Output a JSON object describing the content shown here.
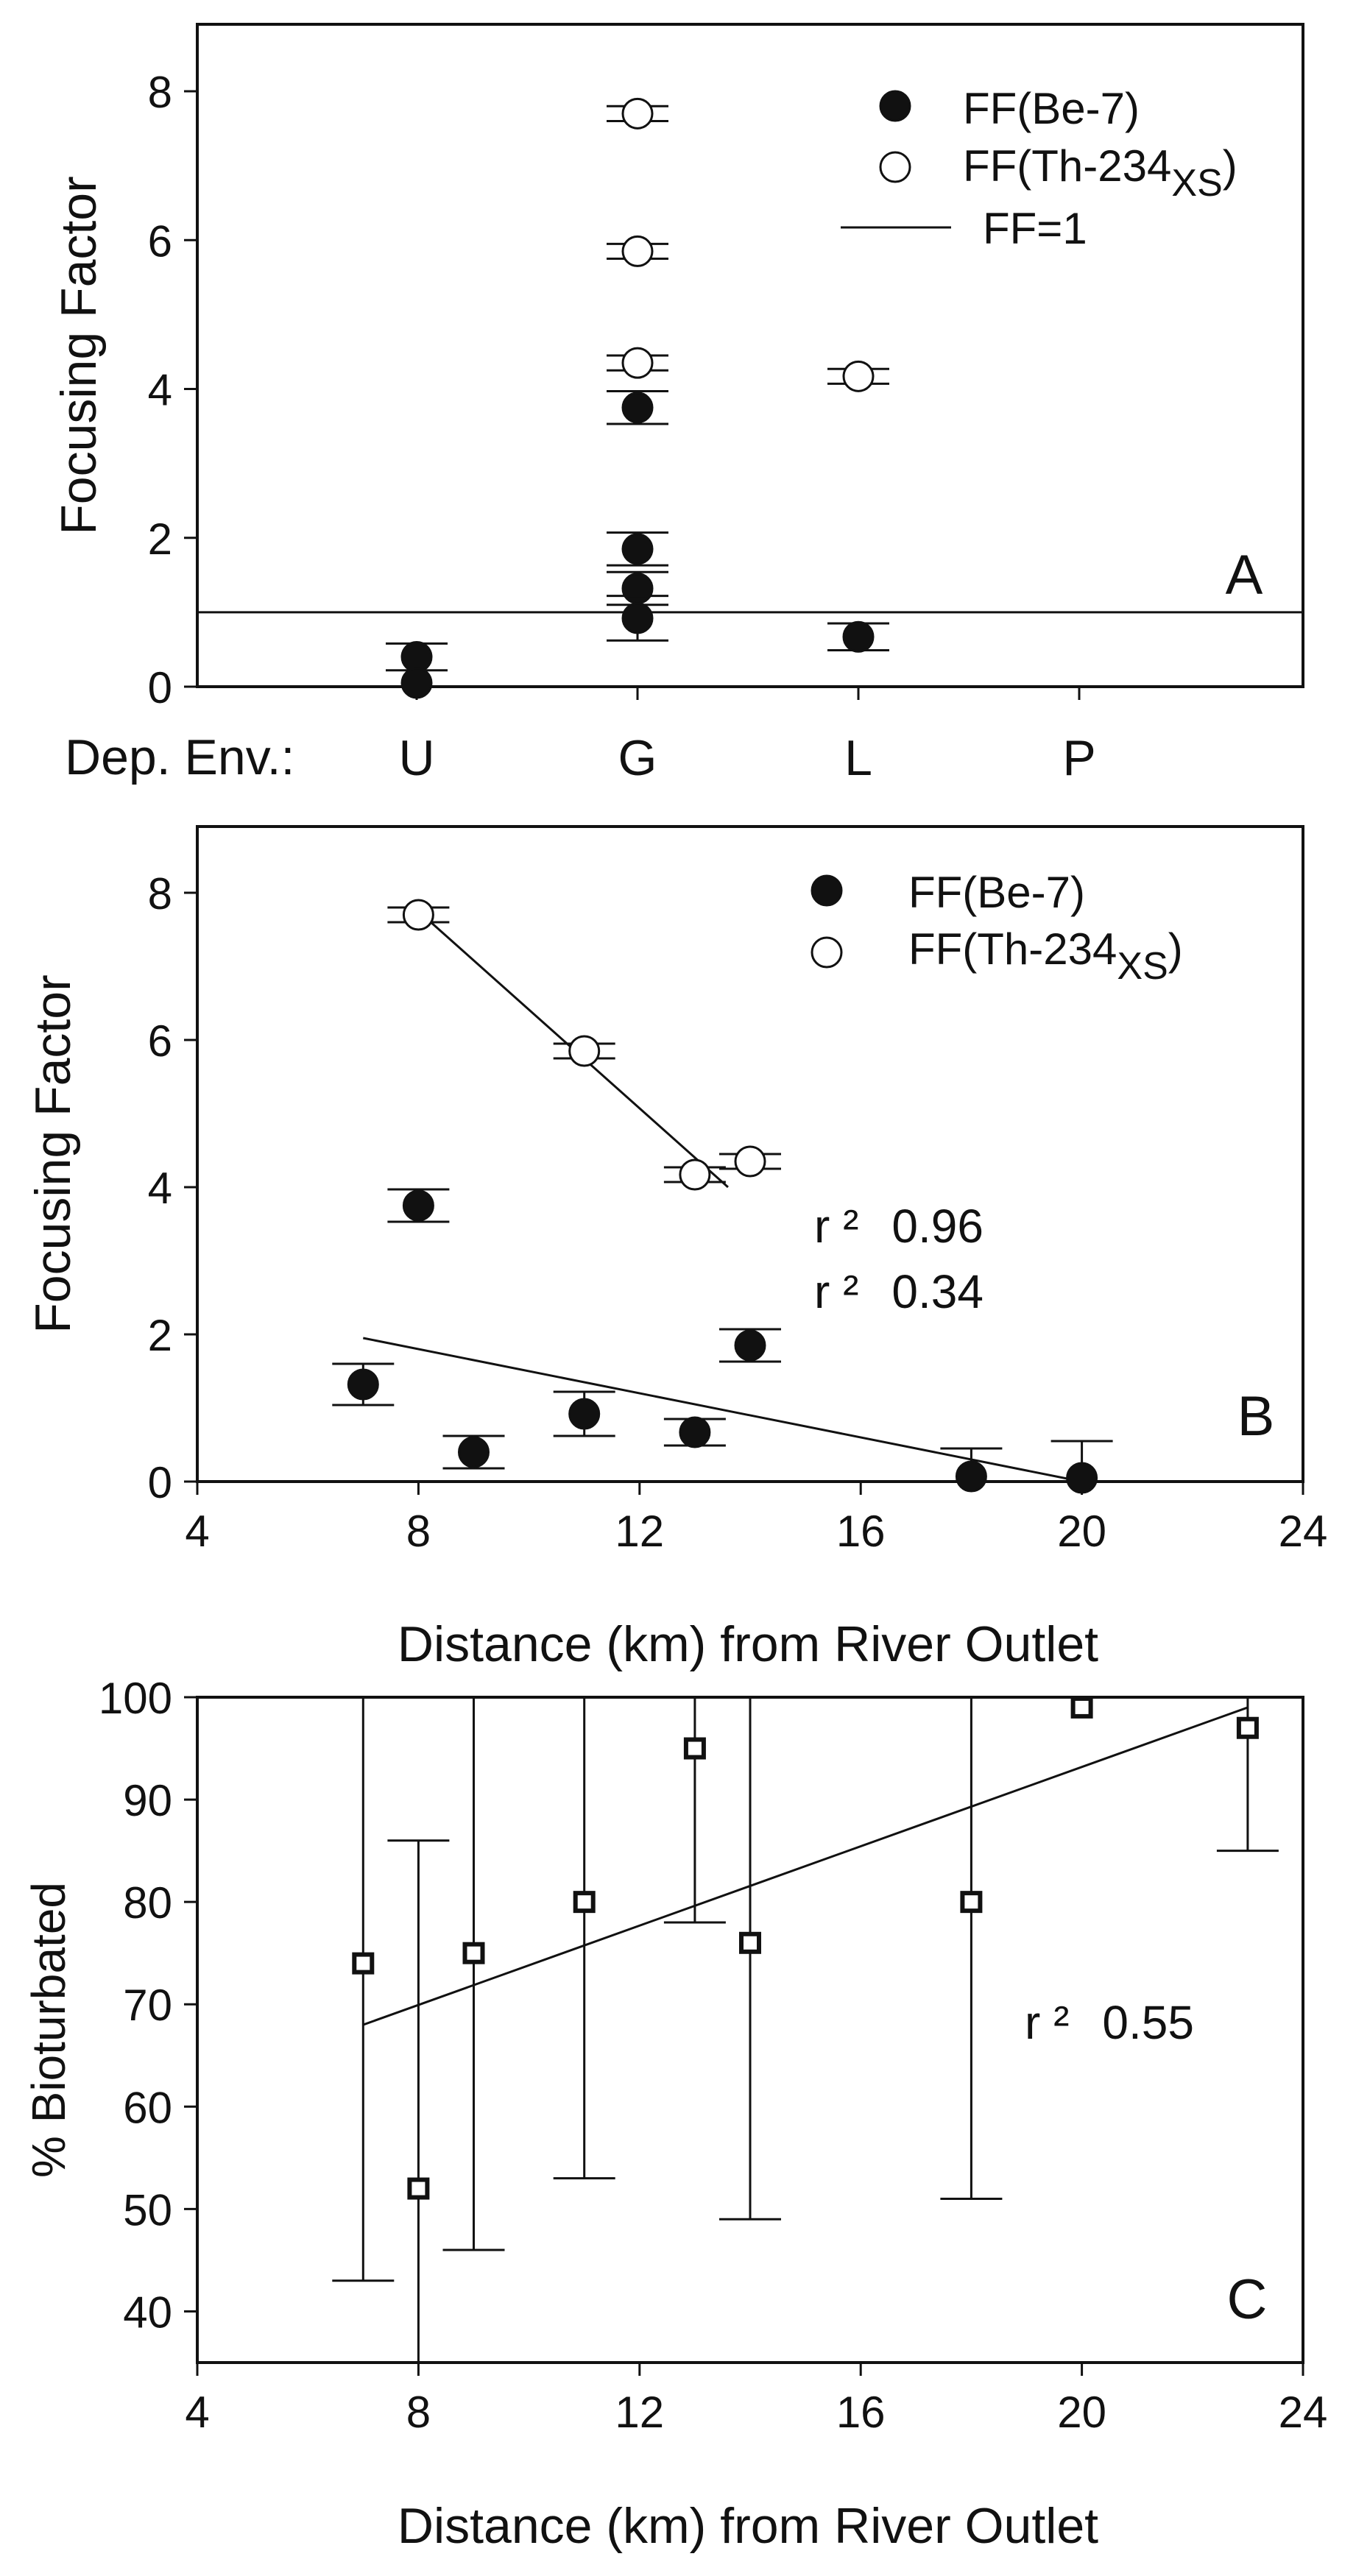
{
  "colors": {
    "ink": "#111111",
    "background": "#ffffff",
    "open_marker_fill": "#ffffff"
  },
  "chart_data": [
    {
      "panel": "A",
      "type": "scatter",
      "ylabel": "Focusing Factor",
      "ylim": [
        0,
        8.9
      ],
      "yticks": [
        0,
        2,
        4,
        6,
        8
      ],
      "x_prefix": "Dep. Env.:",
      "categories": [
        "U",
        "G",
        "L",
        "P"
      ],
      "legend": {
        "position": "top-right",
        "be7": "FF(Be-7)",
        "th_main": "FF(Th-234",
        "th_sub": "XS",
        "th_close": ")",
        "line": "FF=1"
      },
      "reference_line": {
        "y": 1
      },
      "series": [
        {
          "name": "FF(Be-7)",
          "marker": "filled-circle",
          "points": [
            {
              "cat": "U",
              "y": 0.4,
              "err": 0.18
            },
            {
              "cat": "U",
              "y": 0.05,
              "err": 0.0
            },
            {
              "cat": "G",
              "y": 3.75,
              "err": 0.22
            },
            {
              "cat": "G",
              "y": 1.85,
              "err": 0.22
            },
            {
              "cat": "G",
              "y": 1.32,
              "err": 0.22
            },
            {
              "cat": "G",
              "y": 0.92,
              "err": 0.3
            },
            {
              "cat": "L",
              "y": 0.67,
              "err": 0.18
            }
          ]
        },
        {
          "name": "FF(Th-234XS)",
          "marker": "open-circle",
          "points": [
            {
              "cat": "G",
              "y": 7.7,
              "err": 0.1
            },
            {
              "cat": "G",
              "y": 5.85,
              "err": 0.1
            },
            {
              "cat": "G",
              "y": 4.35,
              "err": 0.1
            },
            {
              "cat": "L",
              "y": 4.17,
              "err": 0.1
            }
          ]
        }
      ],
      "panel_label": "A"
    },
    {
      "panel": "B",
      "type": "scatter",
      "xlabel": "Distance (km) from River Outlet",
      "ylabel": "Focusing Factor",
      "xlim": [
        4,
        24
      ],
      "ylim": [
        0,
        8.9
      ],
      "xticks": [
        4,
        8,
        12,
        16,
        20,
        24
      ],
      "yticks": [
        0,
        2,
        4,
        6,
        8
      ],
      "legend": {
        "position": "top-right",
        "be7": "FF(Be-7)",
        "th_main": "FF(Th-234",
        "th_sub": "XS",
        "th_close": ")"
      },
      "annotations": {
        "r2_label": "r ²",
        "r2_th": "0.96",
        "r2_be": "0.34"
      },
      "series": [
        {
          "name": "FF(Be-7)",
          "marker": "filled-circle",
          "points": [
            {
              "x": 7,
              "y": 1.32,
              "err": 0.28
            },
            {
              "x": 8,
              "y": 3.75,
              "err": 0.22
            },
            {
              "x": 9,
              "y": 0.4,
              "err": 0.22
            },
            {
              "x": 11,
              "y": 0.92,
              "err": 0.3
            },
            {
              "x": 13,
              "y": 0.67,
              "err": 0.18
            },
            {
              "x": 14,
              "y": 1.85,
              "err": 0.22
            },
            {
              "x": 18,
              "y": 0.07,
              "err": 0.38
            },
            {
              "x": 20,
              "y": 0.05,
              "err": 0.5
            }
          ]
        },
        {
          "name": "FF(Th-234XS)",
          "marker": "open-circle",
          "points": [
            {
              "x": 8,
              "y": 7.7,
              "err": 0.1
            },
            {
              "x": 11,
              "y": 5.85,
              "err": 0.1
            },
            {
              "x": 13,
              "y": 4.17,
              "err": 0.1
            },
            {
              "x": 14,
              "y": 4.35,
              "err": 0.1
            }
          ]
        }
      ],
      "fit_lines": [
        {
          "name": "Th-234XS fit",
          "x": [
            8,
            13.6
          ],
          "y": [
            7.75,
            4.0
          ]
        },
        {
          "name": "Be-7 fit",
          "x": [
            7,
            20
          ],
          "y": [
            1.95,
            0.0
          ]
        }
      ],
      "panel_label": "B"
    },
    {
      "panel": "C",
      "type": "scatter",
      "xlabel": "Distance (km) from River Outlet",
      "ylabel": "% Bioturbated",
      "xlim": [
        4,
        24
      ],
      "ylim": [
        35,
        100
      ],
      "xticks": [
        4,
        8,
        12,
        16,
        20,
        24
      ],
      "yticks": [
        40,
        50,
        60,
        70,
        80,
        90,
        100
      ],
      "annotations": {
        "r2_label": "r ²",
        "r2_value": "0.55"
      },
      "series": [
        {
          "name": "% Bioturbated",
          "marker": "open-square",
          "points": [
            {
              "x": 7,
              "y": 74,
              "err": 31
            },
            {
              "x": 8,
              "y": 52,
              "err": 34
            },
            {
              "x": 9,
              "y": 75,
              "err": 29
            },
            {
              "x": 11,
              "y": 80,
              "err": 27
            },
            {
              "x": 13,
              "y": 95,
              "err": 17
            },
            {
              "x": 14,
              "y": 76,
              "err": 27
            },
            {
              "x": 18,
              "y": 80,
              "err": 29
            },
            {
              "x": 20,
              "y": 99,
              "err": 0
            },
            {
              "x": 23,
              "y": 97,
              "err": 12
            }
          ]
        }
      ],
      "fit_line": {
        "x": [
          7,
          23
        ],
        "y": [
          68,
          99
        ]
      },
      "panel_label": "C"
    }
  ]
}
